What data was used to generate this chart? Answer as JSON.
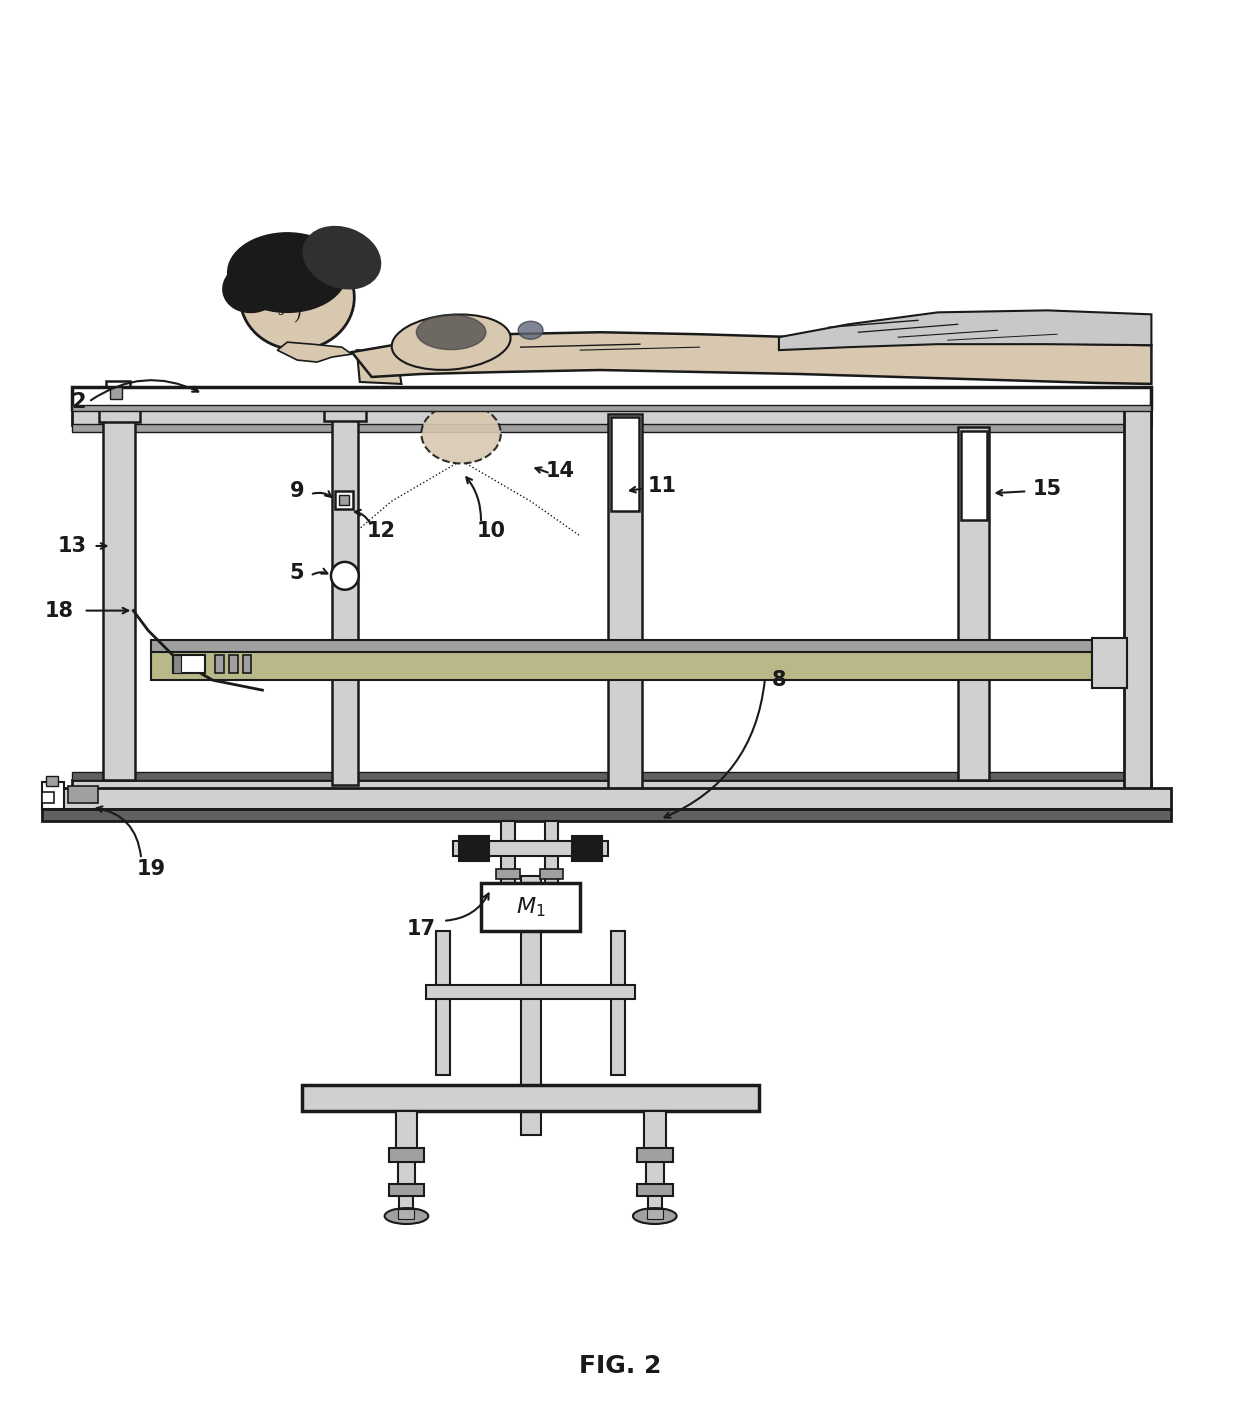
{
  "title": "FIG. 2",
  "bg": "#ffffff",
  "lc": "#1a1a1a",
  "lgray": "#d0d0d0",
  "mgray": "#a0a0a0",
  "dgray": "#606060",
  "sgray": "#b0b0b0",
  "skin": "#d8c8b0",
  "hair": "#1a1a1a",
  "cloth": "#c8c8c8",
  "tray_fill": "#b8b890",
  "fig_w": 12.4,
  "fig_h": 14.24,
  "label_fs": 15
}
